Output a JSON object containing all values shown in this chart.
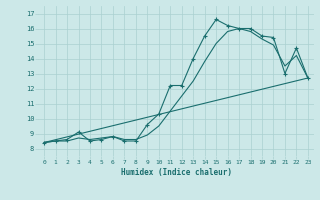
{
  "xlabel": "Humidex (Indice chaleur)",
  "xlim": [
    -0.5,
    23.5
  ],
  "ylim": [
    7.5,
    17.5
  ],
  "xticks": [
    0,
    1,
    2,
    3,
    4,
    5,
    6,
    7,
    8,
    9,
    10,
    11,
    12,
    13,
    14,
    15,
    16,
    17,
    18,
    19,
    20,
    21,
    22,
    23
  ],
  "yticks": [
    8,
    9,
    10,
    11,
    12,
    13,
    14,
    15,
    16,
    17
  ],
  "bg_color": "#cce8e8",
  "grid_color": "#aad0d0",
  "line_color": "#1a6e6e",
  "line1_x": [
    0,
    1,
    2,
    3,
    4,
    5,
    6,
    7,
    8,
    9,
    10,
    11,
    12,
    13,
    14,
    15,
    16,
    17,
    18,
    19,
    20,
    21,
    22,
    23
  ],
  "line1_y": [
    8.4,
    8.5,
    8.6,
    9.1,
    8.5,
    8.6,
    8.8,
    8.5,
    8.5,
    9.6,
    10.3,
    12.2,
    12.2,
    14.0,
    15.5,
    16.6,
    16.2,
    16.0,
    16.0,
    15.5,
    15.4,
    13.0,
    14.7,
    12.7
  ],
  "line2_x": [
    0,
    1,
    2,
    3,
    4,
    5,
    6,
    7,
    8,
    9,
    10,
    11,
    12,
    13,
    14,
    15,
    16,
    17,
    18,
    19,
    20,
    21,
    22,
    23
  ],
  "line2_y": [
    8.4,
    8.5,
    8.5,
    8.7,
    8.6,
    8.7,
    8.8,
    8.6,
    8.6,
    8.9,
    9.5,
    10.5,
    11.5,
    12.5,
    13.8,
    15.0,
    15.8,
    16.0,
    15.8,
    15.3,
    14.9,
    13.5,
    14.2,
    12.7
  ],
  "line3_x": [
    0,
    23
  ],
  "line3_y": [
    8.4,
    12.7
  ],
  "font_name": "monospace"
}
